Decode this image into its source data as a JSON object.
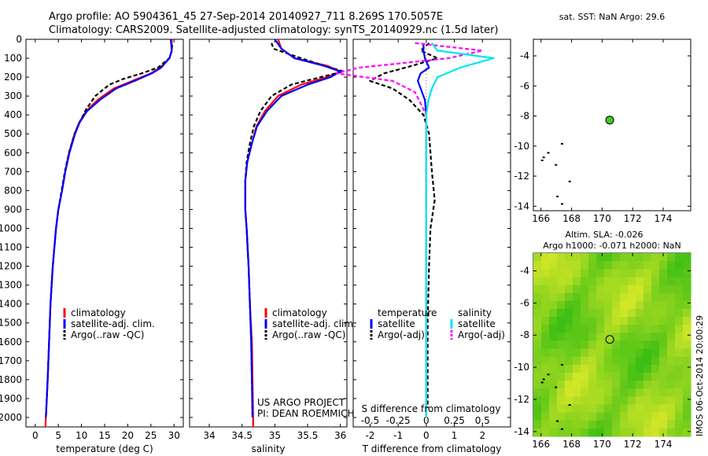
{
  "header": {
    "line1": "Argo profile: AO 5904361_45 27-Sep-2014 20140927_711 8.269S 170.5057E",
    "line2": "Climatology: CARS2009. Satellite-adjusted climatology: synTS_20140929.nc (1.5d later)"
  },
  "colors": {
    "climatology": "#ff0000",
    "satellite": "#0000ff",
    "argo": "#000000",
    "sal_satellite": "#00e5ee",
    "sal_argo": "#ff00ff",
    "sst_marker": "#44cc22"
  },
  "temp_panel": {
    "xlabel": "temperature (deg C)",
    "legend": [
      "climatology",
      "satellite-adj. clim.",
      "Argo(..raw -QC)"
    ]
  },
  "sal_panel": {
    "xlabel": "salinity",
    "legend": [
      "climatology",
      "satellite-adj. clim.",
      "Argo(..raw -QC)"
    ],
    "project": "US ARGO PROJECT",
    "pi": "PI: DEAN ROEMMICH"
  },
  "diff_panel": {
    "top_xlabel": "S difference from climatology",
    "xlabel": "T difference from climatology",
    "legend_temp_title": "temperature",
    "legend_temp": [
      "satellite",
      "Argo(-adj)"
    ],
    "legend_sal_title": "salinity",
    "legend_sal": [
      "satellite",
      "Argo(-adj)"
    ]
  },
  "map_top": {
    "title": "sat. SST: NaN Argo: 29.6"
  },
  "map_bottom": {
    "title1": "Altim. SLA: -0.026",
    "title2": "Argo h1000: -0.071 h2000: NaN"
  },
  "footer": {
    "imos": "IMOS 06-Oct-2014 20:00:29"
  },
  "chart_data": [
    {
      "type": "line",
      "title": "",
      "xlabel": "temperature (deg C)",
      "ylabel": "",
      "xlim": [
        -2,
        32
      ],
      "ylim": [
        2050,
        0
      ],
      "xticks": [
        0,
        5,
        10,
        15,
        20,
        25,
        30
      ],
      "yticks": [
        0,
        100,
        200,
        300,
        400,
        500,
        600,
        700,
        800,
        900,
        1000,
        1100,
        1200,
        1300,
        1400,
        1500,
        1600,
        1700,
        1800,
        1900,
        2000
      ],
      "series": [
        {
          "name": "climatology",
          "x": [
            29.5,
            29.5,
            29,
            27,
            25,
            21,
            17,
            13.5,
            11,
            9.5,
            8.5,
            7.3,
            6.5,
            5.8,
            5,
            4.5,
            3.8,
            3.3,
            3,
            2.7,
            2.5,
            2.3,
            2.2,
            2.2
          ],
          "y": [
            0,
            60,
            100,
            150,
            180,
            220,
            260,
            320,
            380,
            440,
            500,
            600,
            700,
            800,
            900,
            1000,
            1200,
            1400,
            1600,
            1800,
            1900,
            2000,
            2050,
            2050
          ]
        },
        {
          "name": "satellite-adj. clim.",
          "x": [
            29.3,
            29.5,
            29,
            27.2,
            25.2,
            21.5,
            17.5,
            14,
            11.2,
            9.6,
            8.6,
            7.4,
            6.5,
            5.8,
            5,
            4.5,
            3.8,
            3.3,
            3,
            2.7,
            2.5,
            2.3
          ],
          "y": [
            0,
            60,
            100,
            150,
            180,
            220,
            260,
            320,
            380,
            440,
            500,
            600,
            700,
            800,
            900,
            1000,
            1200,
            1400,
            1600,
            1800,
            1900,
            2000
          ]
        },
        {
          "name": "Argo(..raw -QC)",
          "x": [
            29.6,
            29.5,
            29,
            26.5,
            23,
            19,
            16,
            13,
            11,
            9.6,
            8.5,
            7.3,
            6.4,
            5.7,
            5,
            4.5,
            3.8,
            3.3,
            3,
            2.7,
            2.5,
            2.3
          ],
          "y": [
            30,
            60,
            100,
            150,
            180,
            210,
            240,
            300,
            370,
            440,
            500,
            600,
            700,
            800,
            900,
            1000,
            1200,
            1400,
            1600,
            1800,
            1900,
            2000
          ]
        }
      ]
    },
    {
      "type": "line",
      "title": "",
      "xlabel": "salinity",
      "ylabel": "",
      "xlim": [
        33.7,
        36.1
      ],
      "ylim": [
        2050,
        0
      ],
      "xticks": [
        34,
        34.5,
        35,
        35.5,
        36
      ],
      "series": [
        {
          "name": "climatology",
          "x": [
            35.05,
            35.1,
            35.3,
            35.8,
            36.0,
            35.8,
            35.4,
            35.05,
            34.85,
            34.72,
            34.65,
            34.58,
            34.55,
            34.55,
            34.57,
            34.6,
            34.62,
            34.65,
            34.66,
            34.67,
            34.67
          ],
          "y": [
            0,
            50,
            100,
            140,
            170,
            200,
            240,
            300,
            380,
            460,
            550,
            650,
            750,
            900,
            1000,
            1200,
            1400,
            1600,
            1800,
            2000,
            2050
          ]
        },
        {
          "name": "satellite-adj. clim.",
          "x": [
            35.0,
            35.1,
            35.3,
            35.75,
            36.0,
            35.85,
            35.5,
            35.1,
            34.88,
            34.73,
            34.65,
            34.58,
            34.55,
            34.55,
            34.57,
            34.6,
            34.62,
            34.64,
            34.65,
            34.66
          ],
          "y": [
            0,
            50,
            100,
            140,
            170,
            200,
            240,
            300,
            380,
            460,
            550,
            650,
            750,
            900,
            1000,
            1200,
            1400,
            1600,
            1800,
            2000
          ]
        },
        {
          "name": "Argo(..raw -QC)",
          "x": [
            34.95,
            34.98,
            35.4,
            35.75,
            36.05,
            35.7,
            35.25,
            34.95,
            34.78,
            34.68,
            34.62,
            34.57,
            34.55,
            34.55,
            34.57,
            34.6,
            34.62,
            34.64,
            34.65,
            34.66
          ],
          "y": [
            20,
            50,
            100,
            140,
            170,
            200,
            240,
            300,
            380,
            460,
            550,
            650,
            750,
            900,
            1000,
            1200,
            1400,
            1600,
            1800,
            2000
          ]
        }
      ]
    },
    {
      "type": "line",
      "title": "",
      "xlabel": "T difference from climatology",
      "top_xlabel": "S difference from climatology",
      "xlim": [
        -2.6,
        3
      ],
      "ylim": [
        2050,
        0
      ],
      "xticks": [
        -2,
        -1,
        0,
        1,
        2
      ],
      "top_ticks": [
        -0.5,
        -0.25,
        0,
        0.25,
        0.5
      ],
      "series": [
        {
          "name": "temperature satellite",
          "x": [
            -0.1,
            -0.1,
            -0.05,
            0.1,
            -0.2,
            -0.3,
            -0.2,
            -0.05,
            0,
            0,
            0,
            0,
            0,
            0,
            0,
            0
          ],
          "y": [
            20,
            60,
            100,
            150,
            180,
            220,
            260,
            320,
            400,
            500,
            700,
            900,
            1200,
            1500,
            1800,
            2000
          ]
        },
        {
          "name": "temperature Argo(-adj)",
          "x": [
            0.1,
            -0.2,
            0.4,
            -0.5,
            -1.5,
            -2,
            -1.2,
            -0.6,
            -0.1,
            0.1,
            0.2,
            0.3,
            0.15,
            0.1,
            0.05,
            0.05
          ],
          "y": [
            20,
            60,
            100,
            140,
            180,
            220,
            260,
            320,
            400,
            500,
            700,
            850,
            1000,
            1200,
            1500,
            1950
          ]
        },
        {
          "name": "salinity satellite",
          "x": [
            0.05,
            0.1,
            0.6,
            0.3,
            0.1,
            0.05,
            0.02,
            0,
            0,
            0,
            0,
            0,
            0
          ],
          "y": [
            20,
            60,
            100,
            150,
            200,
            260,
            320,
            400,
            600,
            900,
            1300,
            1700,
            2000
          ]
        },
        {
          "name": "salinity Argo(-adj)",
          "x": [
            -0.1,
            0.5,
            0.2,
            -0.6,
            -0.8,
            -0.3,
            -0.1,
            0,
            0,
            0
          ],
          "y": [
            20,
            60,
            100,
            150,
            180,
            220,
            280,
            400,
            800,
            900
          ]
        }
      ]
    },
    {
      "type": "scatter",
      "title": "sat. SST: NaN Argo: 29.6",
      "xlim": [
        165.5,
        175.8
      ],
      "ylim": [
        -14.3,
        -2.9
      ],
      "xticks": [
        166,
        168,
        170,
        172,
        174
      ],
      "yticks": [
        -4,
        -6,
        -8,
        -10,
        -12,
        -14
      ],
      "points": [
        {
          "x": 170.5,
          "y": -8.27
        }
      ]
    },
    {
      "type": "heatmap",
      "title": "Altim. SLA: -0.026",
      "subtitle": "Argo h1000: -0.071 h2000: NaN",
      "xlim": [
        165.5,
        175.8
      ],
      "ylim": [
        -14.3,
        -2.9
      ],
      "xticks": [
        166,
        168,
        170,
        172,
        174
      ],
      "yticks": [
        -4,
        -6,
        -8,
        -10,
        -12,
        -14
      ],
      "points": [
        {
          "x": 170.5,
          "y": -8.27
        }
      ]
    }
  ]
}
